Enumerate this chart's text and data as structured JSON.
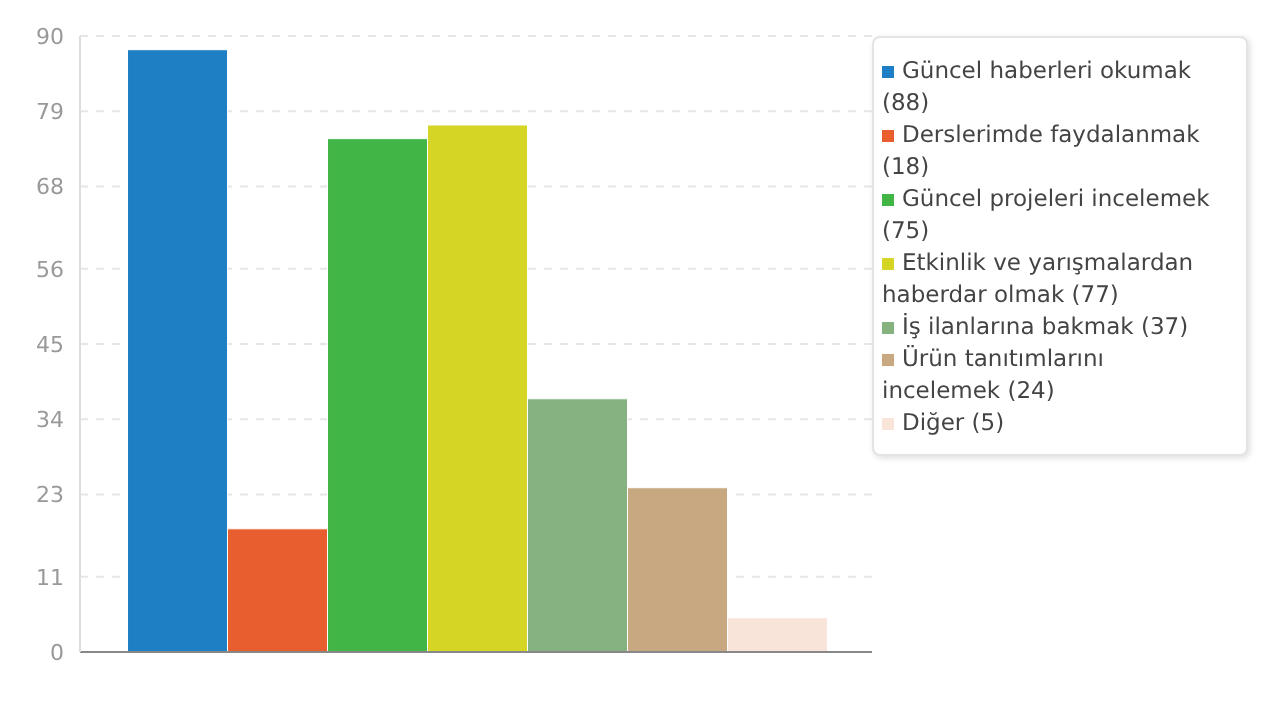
{
  "chart_data": {
    "type": "bar",
    "categories": [
      null
    ],
    "series": [
      {
        "name": "Güncel haberleri okumak (88)",
        "color": "#1f7fc4",
        "values": [
          88
        ]
      },
      {
        "name": "Derslerimde faydalanmak (18)",
        "color": "#e95e2e",
        "values": [
          18
        ]
      },
      {
        "name": "Güncel projeleri incelemek (75)",
        "color": "#42b547",
        "values": [
          75
        ]
      },
      {
        "name": "Etkinlik ve yarışmalardan haberdar olmak (77)",
        "color": "#d4d525",
        "values": [
          77
        ]
      },
      {
        "name": "İş ilanlarına bakmak (37)",
        "color": "#86b282",
        "values": [
          37
        ]
      },
      {
        "name": "Ürün tanıtımlarını incelemek (24)",
        "color": "#c7a880",
        "values": [
          24
        ]
      },
      {
        "name": "Diğer (5)",
        "color": "#f9e4d9",
        "values": [
          5
        ]
      }
    ],
    "ylim": [
      0,
      90
    ],
    "yticks": [
      0,
      11,
      23,
      34,
      45,
      56,
      68,
      79,
      90
    ],
    "grid": "y",
    "legend": "top right"
  }
}
